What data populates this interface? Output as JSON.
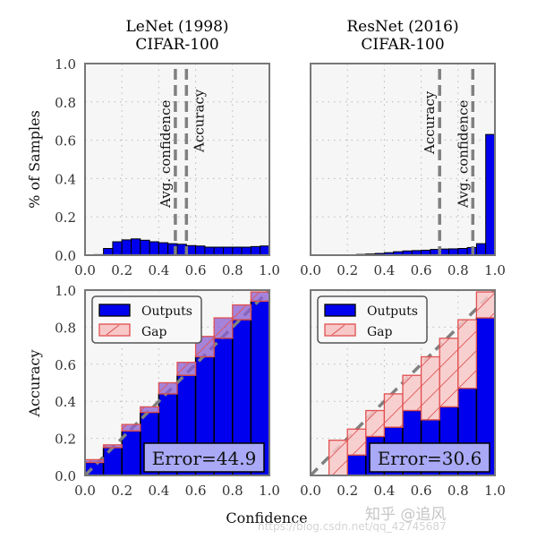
{
  "chart_data": [
    {
      "panel": "top-left",
      "type": "bar",
      "title": "LeNet (1998)\nCIFAR-100",
      "title_lines": [
        "LeNet (1998)",
        "CIFAR-100"
      ],
      "xlabel": "",
      "ylabel": "% of Samples",
      "xlim": [
        0.0,
        1.0
      ],
      "ylim": [
        0.0,
        1.0
      ],
      "xticks": [
        "0.0",
        "0.2",
        "0.4",
        "0.6",
        "0.8",
        "1.0"
      ],
      "yticks": [
        "0.0",
        "0.2",
        "0.4",
        "0.6",
        "0.8",
        "1.0"
      ],
      "grid": true,
      "bin_width": 0.05,
      "bins_start": [
        0.0,
        0.05,
        0.1,
        0.15,
        0.2,
        0.25,
        0.3,
        0.35,
        0.4,
        0.45,
        0.5,
        0.55,
        0.6,
        0.65,
        0.7,
        0.75,
        0.8,
        0.85,
        0.9,
        0.95
      ],
      "values": [
        0.0,
        0.003,
        0.035,
        0.07,
        0.08,
        0.085,
        0.078,
        0.07,
        0.065,
        0.06,
        0.057,
        0.05,
        0.048,
        0.042,
        0.042,
        0.042,
        0.042,
        0.042,
        0.045,
        0.048
      ],
      "vlines": [
        {
          "label": "Avg. confidence",
          "x": 0.49
        },
        {
          "label": "Accuracy",
          "x": 0.55
        }
      ]
    },
    {
      "panel": "top-right",
      "type": "bar",
      "title": "ResNet (2016)\nCIFAR-100",
      "title_lines": [
        "ResNet (2016)",
        "CIFAR-100"
      ],
      "xlabel": "",
      "ylabel": "",
      "xlim": [
        0.0,
        1.0
      ],
      "ylim": [
        0.0,
        1.0
      ],
      "xticks": [
        "0.0",
        "0.2",
        "0.4",
        "0.6",
        "0.8",
        "1.0"
      ],
      "grid": true,
      "bin_width": 0.05,
      "bins_start": [
        0.0,
        0.05,
        0.1,
        0.15,
        0.2,
        0.25,
        0.3,
        0.35,
        0.4,
        0.45,
        0.5,
        0.55,
        0.6,
        0.65,
        0.7,
        0.75,
        0.8,
        0.85,
        0.9,
        0.95
      ],
      "values": [
        0.0,
        0.0,
        0.0,
        0.0,
        0.002,
        0.004,
        0.006,
        0.009,
        0.013,
        0.018,
        0.022,
        0.024,
        0.026,
        0.03,
        0.032,
        0.033,
        0.035,
        0.04,
        0.06,
        0.63
      ],
      "vlines": [
        {
          "label": "Accuracy",
          "x": 0.7
        },
        {
          "label": "Avg. confidence",
          "x": 0.88
        }
      ]
    },
    {
      "panel": "bottom-left",
      "type": "bar",
      "title": "",
      "xlabel": "Confidence",
      "ylabel": "Accuracy",
      "xlim": [
        0.0,
        1.0
      ],
      "ylim": [
        0.0,
        1.0
      ],
      "xticks": [
        "0.0",
        "0.2",
        "0.4",
        "0.6",
        "0.8",
        "1.0"
      ],
      "yticks": [
        "0.0",
        "0.2",
        "0.4",
        "0.6",
        "0.8",
        "1.0"
      ],
      "grid": true,
      "bin_width": 0.1,
      "categories": [
        "0.0-0.1",
        "0.1-0.2",
        "0.2-0.3",
        "0.3-0.4",
        "0.4-0.5",
        "0.5-0.6",
        "0.6-0.7",
        "0.7-0.8",
        "0.8-0.9",
        "0.9-1.0"
      ],
      "series": [
        {
          "name": "Outputs",
          "values": [
            0.07,
            0.15,
            0.24,
            0.34,
            0.44,
            0.54,
            0.64,
            0.74,
            0.84,
            0.94
          ]
        },
        {
          "name": "Gap",
          "top": [
            0.085,
            0.165,
            0.275,
            0.37,
            0.5,
            0.61,
            0.75,
            0.85,
            0.92,
            0.99
          ]
        }
      ],
      "legend": [
        "Outputs",
        "Gap"
      ],
      "legend_position": "upper left",
      "annotation": "Error=44.9",
      "diagonal": true
    },
    {
      "panel": "bottom-right",
      "type": "bar",
      "title": "",
      "xlabel": "Confidence",
      "ylabel": "",
      "xlim": [
        0.0,
        1.0
      ],
      "ylim": [
        0.0,
        1.0
      ],
      "xticks": [
        "0.0",
        "0.2",
        "0.4",
        "0.6",
        "0.8",
        "1.0"
      ],
      "grid": true,
      "bin_width": 0.1,
      "categories": [
        "0.0-0.1",
        "0.1-0.2",
        "0.2-0.3",
        "0.3-0.4",
        "0.4-0.5",
        "0.5-0.6",
        "0.6-0.7",
        "0.7-0.8",
        "0.8-0.9",
        "0.9-1.0"
      ],
      "series": [
        {
          "name": "Outputs",
          "values": [
            0.0,
            0.0,
            0.11,
            0.21,
            0.26,
            0.35,
            0.3,
            0.37,
            0.47,
            0.85
          ]
        },
        {
          "name": "Gap",
          "top": [
            0.0,
            0.19,
            0.25,
            0.35,
            0.44,
            0.54,
            0.64,
            0.74,
            0.84,
            0.99
          ]
        }
      ],
      "legend": [
        "Outputs",
        "Gap"
      ],
      "legend_position": "upper left",
      "annotation": "Error=30.6",
      "diagonal": true
    }
  ],
  "shared": {
    "xlabel": "Confidence",
    "ylabel_top": "% of Samples",
    "ylabel_bottom": "Accuracy"
  },
  "colors": {
    "outputs": "#0000ee",
    "gap_fill": "#f8c8c8",
    "gap_edge": "#e05050",
    "gap_overlay": "#8a5cd0",
    "dashed_line": "#808080",
    "axes_bg": "#f6f6f6",
    "error_box": "#b2b2f7"
  },
  "watermark": {
    "text1": "知乎 @追风",
    "text2": "https://blog.csdn.net/qq_42745687"
  }
}
